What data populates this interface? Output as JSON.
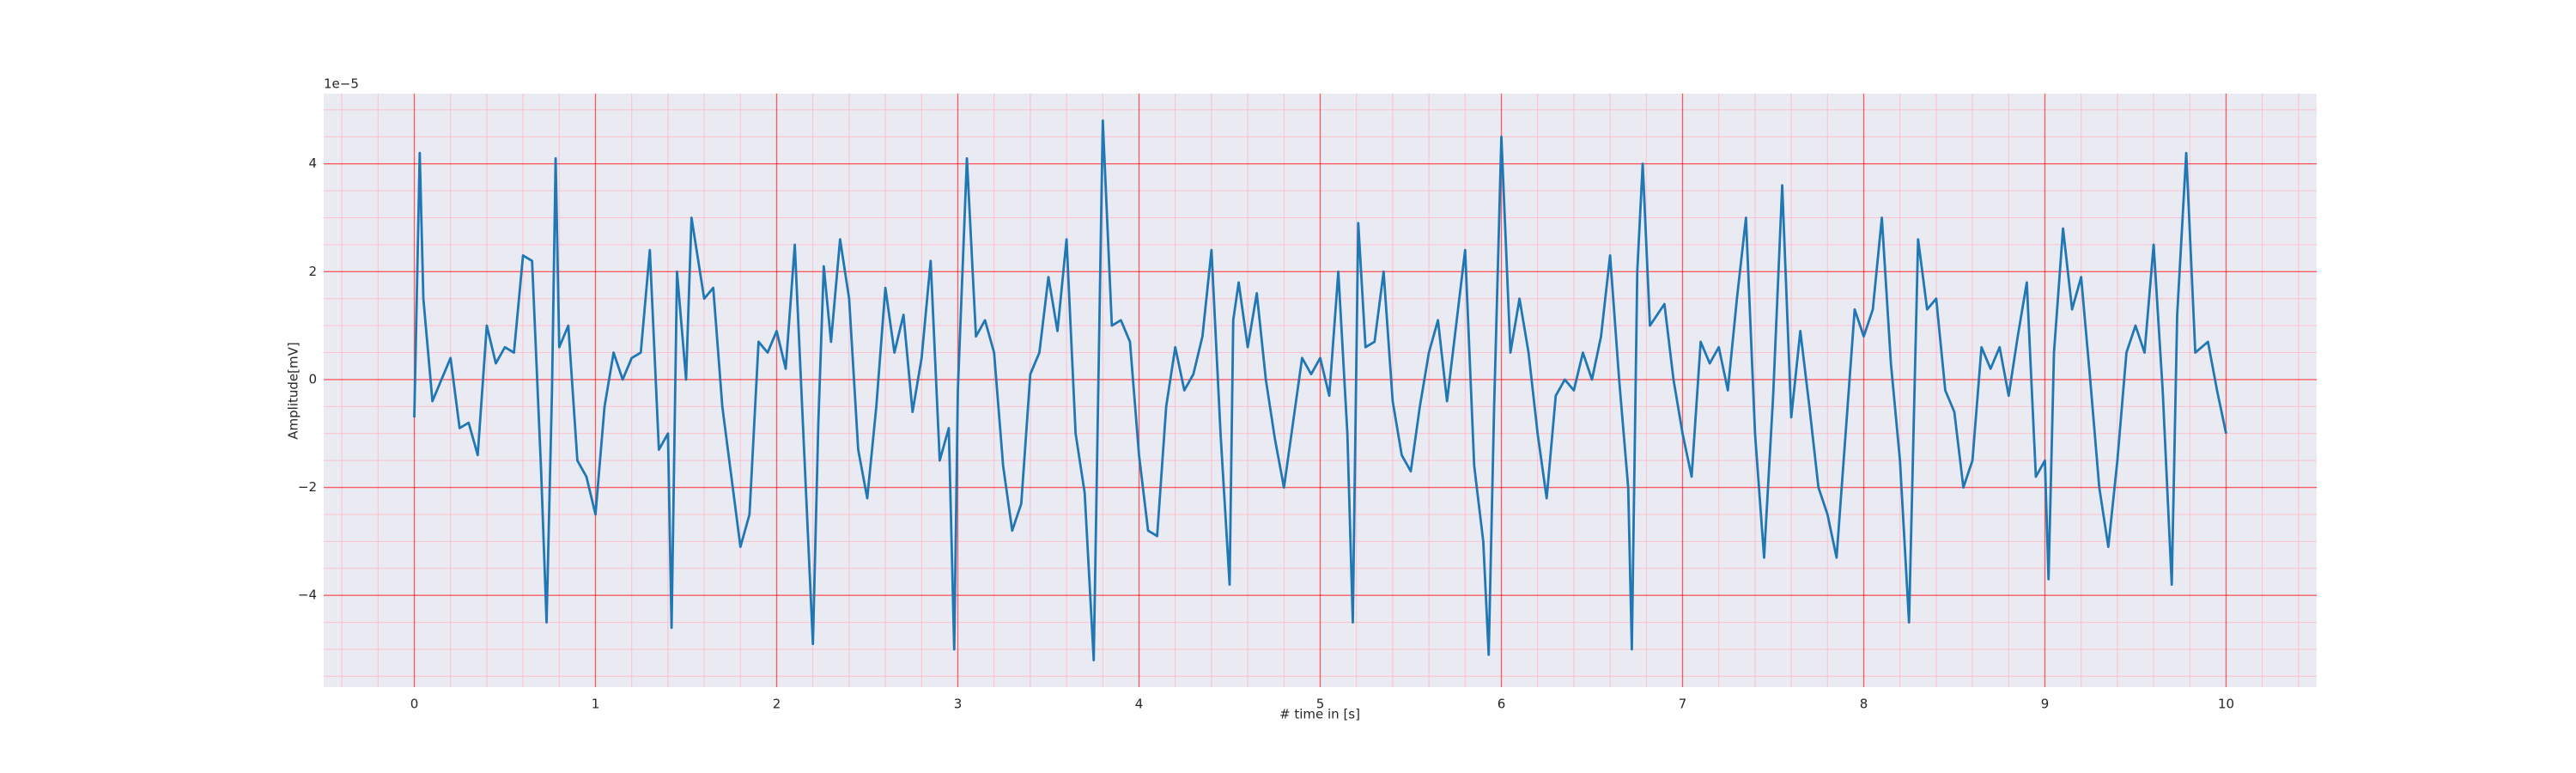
{
  "chart_data": {
    "type": "line",
    "xlabel": "# time in [s]",
    "ylabel": "Amplitude[mV]",
    "y_offset_label": "1e−5",
    "x": [
      0,
      0.03,
      0.05,
      0.1,
      0.15,
      0.2,
      0.25,
      0.3,
      0.35,
      0.4,
      0.45,
      0.5,
      0.55,
      0.6,
      0.65,
      0.7,
      0.73,
      0.76,
      0.78,
      0.8,
      0.85,
      0.9,
      0.95,
      1.0,
      1.05,
      1.1,
      1.15,
      1.2,
      1.25,
      1.3,
      1.35,
      1.4,
      1.42,
      1.45,
      1.5,
      1.53,
      1.6,
      1.65,
      1.7,
      1.8,
      1.85,
      1.9,
      1.95,
      2.0,
      2.05,
      2.1,
      2.15,
      2.2,
      2.23,
      2.26,
      2.3,
      2.35,
      2.4,
      2.45,
      2.5,
      2.55,
      2.6,
      2.65,
      2.7,
      2.75,
      2.8,
      2.85,
      2.9,
      2.95,
      2.98,
      3.0,
      3.05,
      3.1,
      3.15,
      3.2,
      3.25,
      3.3,
      3.35,
      3.4,
      3.45,
      3.5,
      3.55,
      3.6,
      3.65,
      3.7,
      3.75,
      3.8,
      3.85,
      3.9,
      3.95,
      4.0,
      4.05,
      4.1,
      4.15,
      4.2,
      4.25,
      4.3,
      4.35,
      4.4,
      4.45,
      4.5,
      4.52,
      4.55,
      4.6,
      4.65,
      4.7,
      4.75,
      4.8,
      4.85,
      4.9,
      4.95,
      5.0,
      5.05,
      5.1,
      5.15,
      5.18,
      5.21,
      5.25,
      5.3,
      5.35,
      5.4,
      5.45,
      5.5,
      5.55,
      5.6,
      5.65,
      5.7,
      5.75,
      5.8,
      5.85,
      5.9,
      5.93,
      5.96,
      6.0,
      6.05,
      6.1,
      6.15,
      6.2,
      6.25,
      6.3,
      6.35,
      6.4,
      6.45,
      6.5,
      6.55,
      6.6,
      6.65,
      6.7,
      6.72,
      6.75,
      6.78,
      6.82,
      6.9,
      6.95,
      7.0,
      7.05,
      7.1,
      7.15,
      7.2,
      7.25,
      7.3,
      7.35,
      7.4,
      7.45,
      7.5,
      7.55,
      7.6,
      7.65,
      7.7,
      7.75,
      7.8,
      7.85,
      7.9,
      7.95,
      8.0,
      8.05,
      8.1,
      8.15,
      8.2,
      8.25,
      8.3,
      8.35,
      8.4,
      8.45,
      8.5,
      8.55,
      8.6,
      8.65,
      8.7,
      8.75,
      8.8,
      8.85,
      8.9,
      8.95,
      9.0,
      9.02,
      9.05,
      9.1,
      9.15,
      9.2,
      9.25,
      9.3,
      9.35,
      9.4,
      9.45,
      9.5,
      9.55,
      9.6,
      9.65,
      9.7,
      9.73,
      9.78,
      9.83,
      9.9,
      9.95,
      10.0
    ],
    "series": [
      {
        "color": "#1f77b4",
        "values": [
          -0.7,
          4.2,
          1.5,
          -0.4,
          0,
          0.4,
          -0.9,
          -0.8,
          -1.4,
          1.0,
          0.3,
          0.6,
          0.5,
          2.3,
          2.2,
          -1.7,
          -4.5,
          -0.2,
          4.1,
          0.6,
          1.0,
          -1.5,
          -1.8,
          -2.5,
          -0.5,
          0.5,
          0,
          0.4,
          0.5,
          2.4,
          -1.3,
          -1.0,
          -4.6,
          2.0,
          0.0,
          3.0,
          1.5,
          1.7,
          -0.5,
          -3.1,
          -2.5,
          0.7,
          0.5,
          0.9,
          0.2,
          2.5,
          -1.2,
          -4.9,
          -0.8,
          2.1,
          0.7,
          2.6,
          1.5,
          -1.3,
          -2.2,
          -0.5,
          1.7,
          0.5,
          1.2,
          -0.6,
          0.4,
          2.2,
          -1.5,
          -0.9,
          -5.0,
          -0.2,
          4.1,
          0.8,
          1.1,
          0.5,
          -1.6,
          -2.8,
          -2.3,
          0.1,
          0.5,
          1.9,
          0.9,
          2.6,
          -1.0,
          -2.1,
          -5.2,
          4.8,
          1.0,
          1.1,
          0.7,
          -1.4,
          -2.8,
          -2.9,
          -0.5,
          0.6,
          -0.2,
          0.1,
          0.8,
          2.4,
          -1.0,
          -3.8,
          1.1,
          1.8,
          0.6,
          1.6,
          0.0,
          -1.1,
          -2.0,
          -0.8,
          0.4,
          0.1,
          0.4,
          -0.3,
          2.0,
          -1.0,
          -4.5,
          2.9,
          0.6,
          0.7,
          2.0,
          -0.4,
          -1.4,
          -1.7,
          -0.5,
          0.5,
          1.1,
          -0.4,
          1.0,
          2.4,
          -1.6,
          -3.0,
          -5.1,
          -0.5,
          4.5,
          0.5,
          1.5,
          0.5,
          -1.0,
          -2.2,
          -0.3,
          0.0,
          -0.2,
          0.5,
          0.0,
          0.8,
          2.3,
          0.0,
          -2.0,
          -5.0,
          2.0,
          4.0,
          1.0,
          1.4,
          0.0,
          -1.0,
          -1.8,
          0.7,
          0.3,
          0.6,
          -0.2,
          1.5,
          3.0,
          -1.0,
          -3.3,
          -0.3,
          3.6,
          -0.7,
          0.9,
          -0.5,
          -2.0,
          -2.5,
          -3.3,
          -1.0,
          1.3,
          0.8,
          1.3,
          3.0,
          0.3,
          -1.5,
          -4.5,
          2.6,
          1.3,
          1.5,
          -0.2,
          -0.6,
          -2.0,
          -1.5,
          0.6,
          0.2,
          0.6,
          -0.3,
          0.8,
          1.8,
          -1.8,
          -1.5,
          -3.7,
          0.5,
          2.8,
          1.3,
          1.9,
          0.0,
          -2.0,
          -3.1,
          -1.5,
          0.5,
          1.0,
          0.5,
          2.5,
          -0.2,
          -3.8,
          1.2,
          4.2,
          0.5,
          0.7,
          -0.2,
          -1.0
        ]
      }
    ],
    "xlim": [
      -0.5,
      10.5
    ],
    "ylim": [
      -5.7,
      5.3
    ],
    "xticks": [
      0,
      1,
      2,
      3,
      4,
      5,
      6,
      7,
      8,
      9,
      10
    ],
    "yticks": [
      {
        "value": -4,
        "label": "−4"
      },
      {
        "value": -2,
        "label": "−2"
      },
      0,
      2,
      4
    ],
    "xminorticks": [
      -0.4,
      -0.2,
      0.2,
      0.4,
      0.6,
      0.8,
      1.2,
      1.4,
      1.6,
      1.8,
      2.2,
      2.4,
      2.6,
      2.8,
      3.2,
      3.4,
      3.6,
      3.8,
      4.2,
      4.4,
      4.6,
      4.8,
      5.2,
      5.4,
      5.6,
      5.8,
      6.2,
      6.4,
      6.6,
      6.8,
      7.2,
      7.4,
      7.6,
      7.8,
      8.2,
      8.4,
      8.6,
      8.8,
      9.2,
      9.4,
      9.6,
      9.8,
      10.2,
      10.4
    ],
    "yminorticks": [
      -5.5,
      -5,
      -4.5,
      -3.5,
      -3,
      -2.5,
      -1.5,
      -1,
      -0.5,
      0.5,
      1,
      1.5,
      2.5,
      3,
      3.5,
      4.5,
      5
    ],
    "grid": true,
    "grid_color": "#ff0000",
    "minor_grid_color": "#ffb6c1",
    "background": "#eaeaf2"
  }
}
